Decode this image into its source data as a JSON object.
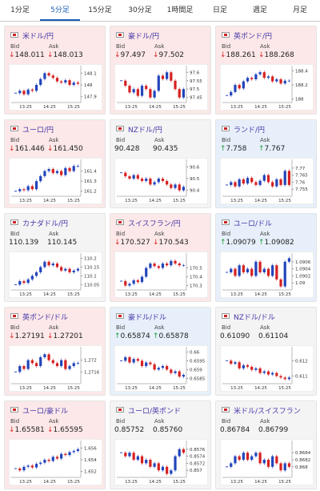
{
  "tabs": [
    "1分足",
    "5分足",
    "15分足",
    "30分足",
    "1時間足",
    "日足",
    "週足",
    "月足"
  ],
  "active_tab": 1,
  "bid_label": "Bid",
  "ask_label": "Ask",
  "chart_xlabels": [
    "13:25",
    "14:25",
    "15:25"
  ],
  "cards": [
    {
      "name": "米ドル/円",
      "arrow": "↓",
      "bid": "148.011",
      "ask": "148.013",
      "ylim": [
        147.85,
        148.15
      ],
      "yticks": [
        148.1,
        148,
        147.9
      ],
      "closes": [
        147.93,
        147.95,
        147.92,
        147.96,
        147.95,
        148.0,
        148.05,
        148.1,
        148.08,
        148.06,
        148.03,
        148.02,
        148.04,
        148.0,
        148.02,
        148.01
      ]
    },
    {
      "name": "豪ドル/円",
      "arrow": "↓",
      "bid": "97.497",
      "ask": "97.502",
      "ylim": [
        97.42,
        97.63
      ],
      "yticks": [
        97.6,
        97.55,
        97.5,
        97.45
      ],
      "closes": [
        97.55,
        97.52,
        97.48,
        97.5,
        97.46,
        97.52,
        97.5,
        97.45,
        97.49,
        97.58,
        97.56,
        97.6,
        97.55,
        97.5,
        97.45,
        97.5
      ]
    },
    {
      "name": "英ポンド/円",
      "arrow": "↓",
      "bid": "188.261",
      "ask": "188.268",
      "ylim": [
        187.95,
        188.45
      ],
      "yticks": [
        188.4,
        188.2,
        188
      ],
      "closes": [
        188.05,
        188.1,
        188.2,
        188.15,
        188.25,
        188.3,
        188.28,
        188.35,
        188.38,
        188.3,
        188.32,
        188.25,
        188.28,
        188.22,
        188.26,
        188.26
      ]
    },
    {
      "name": "ユーロ/円",
      "arrow": "↓",
      "bid": "161.446",
      "ask": "161.450",
      "ylim": [
        161.15,
        161.5
      ],
      "yticks": [
        161.4,
        161.3,
        161.2
      ],
      "closes": [
        161.2,
        161.22,
        161.21,
        161.25,
        161.22,
        161.3,
        161.35,
        161.4,
        161.42,
        161.38,
        161.4,
        161.36,
        161.43,
        161.4,
        161.45,
        161.45
      ]
    },
    {
      "name": "NZドル/円",
      "bid": "90.428",
      "ask": "90.435",
      "ylim": [
        90.35,
        90.65
      ],
      "yticks": [
        90.6,
        90.5,
        90.4
      ],
      "closes": [
        90.55,
        90.52,
        90.5,
        90.53,
        90.5,
        90.48,
        90.5,
        90.45,
        90.47,
        90.5,
        90.48,
        90.45,
        90.42,
        90.45,
        90.4,
        90.43
      ]
    },
    {
      "name": "ランド/円",
      "arrow": "↑",
      "bid": "7.758",
      "ask": "7.767",
      "ylim": [
        7.75,
        7.775
      ],
      "yticks": [
        7.77,
        7.765,
        7.76,
        7.755
      ],
      "closes": [
        7.758,
        7.76,
        7.757,
        7.762,
        7.759,
        7.763,
        7.76,
        7.758,
        7.761,
        7.765,
        7.76,
        7.757,
        7.762,
        7.758,
        7.768,
        7.758
      ]
    },
    {
      "name": "カナダドル/円",
      "bid": "110.139",
      "ask": "110.145",
      "ylim": [
        110.02,
        110.22
      ],
      "yticks": [
        110.2,
        110.15,
        110.1,
        110.05
      ],
      "closes": [
        110.05,
        110.07,
        110.06,
        110.08,
        110.1,
        110.12,
        110.15,
        110.18,
        110.16,
        110.17,
        110.15,
        110.13,
        110.14,
        110.12,
        110.13,
        110.14
      ]
    },
    {
      "name": "スイスフラン/円",
      "arrow": "↓",
      "bid": "170.527",
      "ask": "170.543",
      "ylim": [
        170.25,
        170.65
      ],
      "yticks": [
        170.5,
        170.4,
        170.3
      ],
      "closes": [
        170.35,
        170.3,
        170.32,
        170.36,
        170.34,
        170.4,
        170.5,
        170.55,
        170.52,
        170.5,
        170.55,
        170.53,
        170.58,
        170.55,
        170.53,
        170.53
      ]
    },
    {
      "name": "ユーロ/ドル",
      "arrow": "↑",
      "bid": "1.09079",
      "ask": "1.09082",
      "ylim": [
        1.0898,
        1.0908
      ],
      "yticks": [
        1.0906,
        1.0904,
        1.0902,
        1.09
      ],
      "closes": [
        1.0903,
        1.0904,
        1.0902,
        1.0905,
        1.0903,
        1.0904,
        1.0902,
        1.0906,
        1.0903,
        1.0904,
        1.0902,
        1.0905,
        1.0901,
        1.0899,
        1.0906,
        1.0907
      ]
    },
    {
      "name": "英ポンド/ドル",
      "arrow": "↓",
      "bid": "1.27191",
      "ask": "1.27201",
      "ylim": [
        1.2712,
        1.2724
      ],
      "yticks": [
        1.272,
        1.2716
      ],
      "closes": [
        1.2716,
        1.2718,
        1.2717,
        1.272,
        1.2719,
        1.2718,
        1.2721,
        1.2722,
        1.272,
        1.2719,
        1.2718,
        1.272,
        1.2717,
        1.2718,
        1.2719,
        1.2719
      ]
    },
    {
      "name": "豪ドル/ドル",
      "arrow": "↑",
      "bid": "0.65874",
      "ask": "0.65878",
      "ylim": [
        0.6582,
        0.6602
      ],
      "yticks": [
        0.66,
        0.6595,
        0.659,
        0.6585
      ],
      "closes": [
        0.6595,
        0.6597,
        0.6594,
        0.6596,
        0.6595,
        0.6592,
        0.6594,
        0.6593,
        0.659,
        0.6591,
        0.6592,
        0.659,
        0.6588,
        0.6589,
        0.6586,
        0.6587
      ]
    },
    {
      "name": "NZドル/ドル",
      "bid": "0.61090",
      "ask": "0.61104",
      "ylim": [
        0.6105,
        0.6128
      ],
      "yticks": [
        0.612,
        0.611
      ],
      "closes": [
        0.612,
        0.6118,
        0.6119,
        0.6115,
        0.6117,
        0.6116,
        0.6114,
        0.6115,
        0.6112,
        0.6113,
        0.6111,
        0.6112,
        0.611,
        0.6109,
        0.6108,
        0.6109
      ]
    },
    {
      "name": "ユーロ/豪ドル",
      "arrow": "↓",
      "bid": "1.65581",
      "ask": "1.65595",
      "ylim": [
        1.651,
        1.657
      ],
      "yticks": [
        1.656,
        1.654,
        1.652
      ],
      "closes": [
        1.6525,
        1.6522,
        1.6528,
        1.653,
        1.6527,
        1.6533,
        1.6535,
        1.654,
        1.6538,
        1.6545,
        1.6542,
        1.655,
        1.6548,
        1.6553,
        1.6555,
        1.6558
      ]
    },
    {
      "name": "ユーロ/英ポンド",
      "bid": "0.85752",
      "ask": "0.85760",
      "ylim": [
        0.8568,
        0.8578
      ],
      "yticks": [
        0.8576,
        0.8574,
        0.8572,
        0.857
      ],
      "closes": [
        0.8575,
        0.8574,
        0.8575,
        0.8573,
        0.8574,
        0.8572,
        0.8573,
        0.8571,
        0.8572,
        0.857,
        0.8571,
        0.8569,
        0.857,
        0.8574,
        0.8576,
        0.8575
      ]
    },
    {
      "name": "米ドル/スイスフラン",
      "bid": "0.86784",
      "ask": "0.86799",
      "ylim": [
        0.8677,
        0.8687
      ],
      "yticks": [
        0.8684,
        0.8682,
        0.868
      ],
      "closes": [
        0.868,
        0.8681,
        0.8683,
        0.8682,
        0.8684,
        0.8682,
        0.8683,
        0.8684,
        0.8681,
        0.8682,
        0.868,
        0.8683,
        0.8681,
        0.8679,
        0.8681,
        0.868
      ]
    }
  ]
}
